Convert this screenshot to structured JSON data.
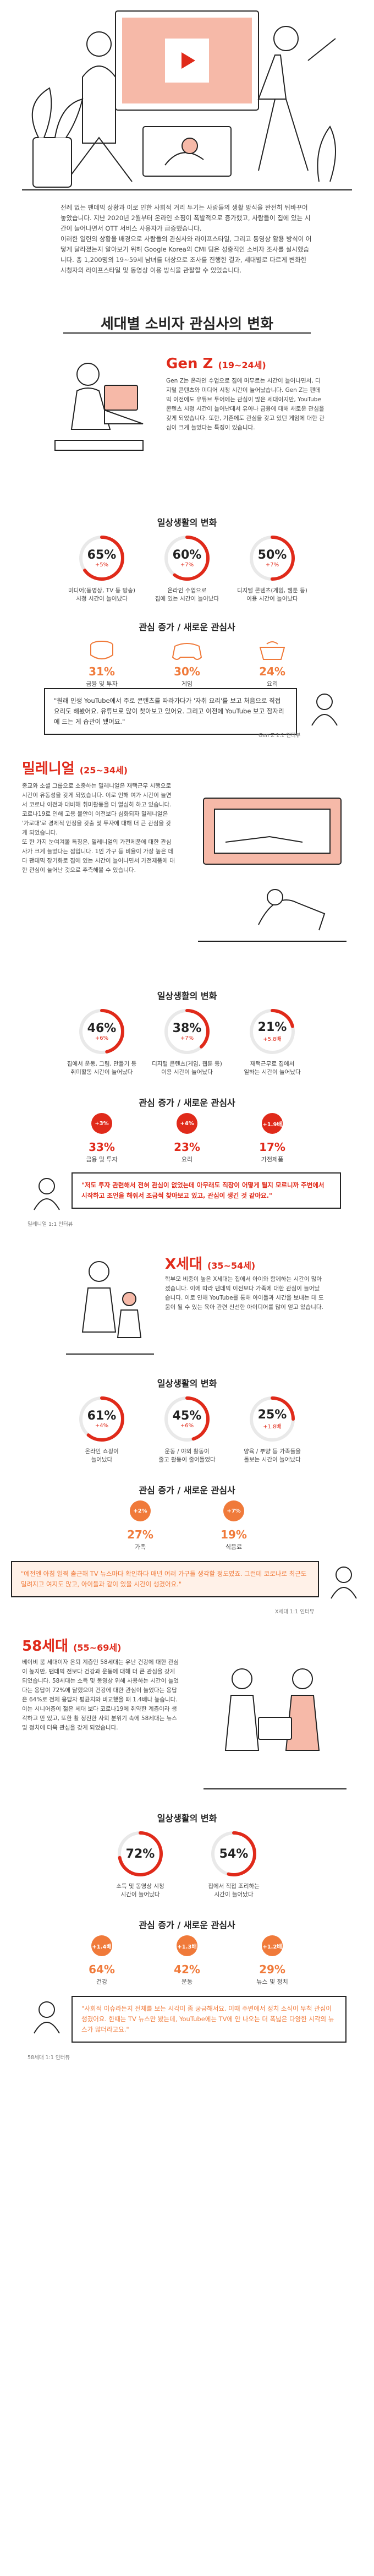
{
  "intro": "전례 없는 팬데믹 상황과 이로 인한 사회적 거리 두기는 사람들의 생활 방식을 완전히 뒤바꾸어 놓았습니다. 지난 2020년 2월부터 온라인 쇼핑이 폭발적으로 증가했고, 사람들이 집에 있는 시간이 늘어나면서 OTT 서비스 사용자가 급증했습니다.\n이러한 일련의 상황을 배경으로 사람들의 관심사와 라이프스타일, 그리고 동영상 활용 방식이 어떻게 달라졌는지 알아보기 위해 Google Korea의 CMI 팀은 성충적인 소비자 조사를 실시했습니다. 총 1,200명의 19~59세 남녀를 대상으로 조사를 진행한 결과, 세대별로 다르게 변화한 시청자의 라이프스타일 및 동영상 이용 방식을 관찰할 수 있었습니다.",
  "main_title": "세대별 소비자 관심사의 변화",
  "genz": {
    "title": "Gen Z",
    "age": "(19~24세)",
    "desc": "Gen Z는 온라인 수업으로 집에 머무르는 시간이 늘어나면서, 디지털 콘텐츠와 미디어 시청 시간이 늘어났습니다. Gen Z는 팬데믹 이전에도 유튜브 투어에는 관심이 많은 세대이지만, YouTube 콘텐츠 시청 시간이 늘어난데서 유아나 금융에 대해 새로운 관심을 갖게 되었습니다. 또한, 기존에도 관심을 갖고 있던 게임에 대한 관심이 크게 늘었다는 특징이 있습니다.",
    "change_title": "일상생활의 변화",
    "stats": [
      {
        "pct": "65%",
        "delta": "+5%",
        "cap": "미디어(동영상, TV 등 방송)\n시청 시간이 늘어났다",
        "val": 65
      },
      {
        "pct": "60%",
        "delta": "+7%",
        "cap": "온라인 수업으로\n집에 있는 시간이 늘어났다",
        "val": 60
      },
      {
        "pct": "50%",
        "delta": "+7%",
        "cap": "디지털 콘텐츠(게임, 웹툰 등)\n이용 시간이 늘어났다",
        "val": 50
      }
    ],
    "int_title": "관심 증가 / 새로운 관심사",
    "interests": [
      {
        "pct": "31%",
        "lbl": "금융 및 투자"
      },
      {
        "pct": "30%",
        "lbl": "게임"
      },
      {
        "pct": "24%",
        "lbl": "요리"
      }
    ],
    "quote": "\"원래 인생 YouTube에서 주로 콘텐츠를 따라가다가 '자취 요리'를 보고 처음으로 직접 요리도 해봤어요. 유튜브로 많이 찾아보고 있어요. 그리고 이전에 YouTube 보고 잠자리에 드는 게 습관이 됐어요.\"",
    "quote_hl": "원래 인생 YouTube에서 주로 콘텐츠를 따라가다가 '자취 요리'를 보고 처음으로 직접 요리도 해봤어요.",
    "src": "Gen Z 1:1 인터뷰"
  },
  "mil": {
    "title": "밀레니얼",
    "age": "(25~34세)",
    "desc": "종교와 소셜 그룹으로 소중하는 밀레니얼은 재택근무 시행으로 시간이 유동성을 갖게 되었습니다. 이로 인해 여가 시간이 늘면서 코로나 이전과 대비해 취미활동을 더 열심히 하고 있습니다. 코로나19로 인해 고용 불안이 이전보다 심화되자 밀레니얼은 '가로대'로 경제적 안정을 갖출 및 투자에 대해 더 큰 관심을 갖게 되었습니다.\n또 한 가지 눈여겨볼 특징은, 밀레니얼의 가전제품에 대한 관심사가 크게 늘었다는 점입니다. 1인 가구 등 비율이 가장 높은 데다 팬데믹 장기화로 집에 있는 시간이 늘어나면서 가전제품에 대한 관심이 늘어난 것으로 추측해볼 수 있습니다.",
    "change_title": "일상생활의 변화",
    "stats": [
      {
        "pct": "46%",
        "delta": "+6%",
        "cap": "집에서 운동, 그림, 만들기 등\n취미활동 시간이 늘어났다",
        "val": 46
      },
      {
        "pct": "38%",
        "delta": "+7%",
        "cap": "디지털 콘텐츠(게임, 웹툰 등)\n이용 시간이 늘어났다",
        "val": 38
      },
      {
        "pct": "21%",
        "delta": "+5.8배",
        "cap": "재택근무로 집에서\n일하는 시간이 늘어났다",
        "val": 21
      }
    ],
    "int_title": "관심 증가 / 새로운 관심사",
    "interests": [
      {
        "pct": "33%",
        "lbl": "금융 및 투자",
        "badge": "+3%"
      },
      {
        "pct": "23%",
        "lbl": "요리",
        "badge": "+4%"
      },
      {
        "pct": "17%",
        "lbl": "가전제품",
        "badge": "+1.9배"
      }
    ],
    "quote": "\"저도 투자 관련해서 전혀 관심이 없었는데 아무래도 직장이 어떻게 될지 모르니까 주변에서 시작하고 조언을 해줘서 조금씩 찾아보고 있고, 관심이 생긴 것 같아요.\"",
    "src": "밀레니얼 1:1 인터뷰"
  },
  "genx": {
    "title": "X세대",
    "age": "(35~54세)",
    "desc": "학부모 비중이 높은 X세대는 집에서 아이와 함께하는 시간이 많아졌습니다. 이에 따라 팬데믹 이전보다 가족에 대한 관심이 늘어났습니다. 이로 인해 YouTube를 통해 아이들과 시간을 보내는 데 도움이 될 수 있는 육아 관련 신선한 아이디어를 많이 얻고 있습니다.",
    "change_title": "일상생활의 변화",
    "stats": [
      {
        "pct": "61%",
        "delta": "+4%",
        "cap": "온라인 쇼핑이\n늘어났다",
        "val": 61
      },
      {
        "pct": "45%",
        "delta": "+6%",
        "cap": "운동 / 야외 활동이\n줄고 활동이 줄어들었다",
        "val": 45
      },
      {
        "pct": "25%",
        "delta": "+1.8배",
        "cap": "양육 / 부양 등 가족들을\n돌보는 시간이 늘어났다",
        "val": 25
      }
    ],
    "int_title": "관심 증가 / 새로운 관심사",
    "interests": [
      {
        "pct": "27%",
        "lbl": "가족",
        "badge": "+2%"
      },
      {
        "pct": "19%",
        "lbl": "식음료",
        "badge": "+7%"
      }
    ],
    "quote": "\"예전엔 아침 일찍 출근해 TV 뉴스마다 확인하다 매년 여러 가구들 생각할 정도였죠. 그런데 코로나로 최근도 밀려지고 여지도 많고, 아이들과 같이 있을 시간이 생겼어요.\"",
    "src": "X세대 1:1 인터뷰"
  },
  "gen58": {
    "title": "58세대",
    "age": "(55~69세)",
    "desc": "베이비 붐 세대이자 은퇴 계층인 58세대는 유난 건강에 대한 관심이 높지만, 팬데믹 전보다 건강과 운동에 대해 더 큰 관심을 갖게 되었습니다. 58세대는 소득 및 동영상 위해 사용하는 시간이 늘었다는 응답이 72%에 달했으며 건강에 대한 관심이 늘었다는 응답은 64%로 전체 응답자 평균치와 비교했을 때 1.4배나 높습니다.\n이는 시니어층이 젊은 세대 보다 코로나19에 취약한 계층이라 생각하고 만 있고, 또한 활 정진한 사회 분위기 속에 58세대는 뉴스 및 정치에 더욱 관심을 갖게 되었습니다.",
    "change_title": "일상생활의 변화",
    "stats": [
      {
        "pct": "72%",
        "delta": "",
        "cap": "소득 및 동영상 시청\n시간이 늘어났다",
        "val": 72
      },
      {
        "pct": "54%",
        "delta": "",
        "cap": "집에서 직접 조리하는\n시간이 늘어났다",
        "val": 54
      }
    ],
    "int_title": "관심 증가 / 새로운 관심사",
    "interests": [
      {
        "pct": "64%",
        "lbl": "건강",
        "badge": "+1.4배"
      },
      {
        "pct": "42%",
        "lbl": "운동",
        "badge": "+1.3배"
      },
      {
        "pct": "29%",
        "lbl": "뉴스 및 정치",
        "badge": "+1.2배"
      }
    ],
    "quote": "\"사회적 이슈라든지 전체를 보는 시각이 좀 궁금해서요. 이때 주변에서 정치 소식이 무척 관심이 생겼어요. 한때는 TV 뉴스만 봤는데, YouTube에는 TV에 안 나오는 더 폭넓은 다양한 시각의 뉴스가 많더라고요.\"",
    "src": "58세대 1:1 인터뷰"
  },
  "colors": {
    "red": "#e02a1a",
    "orange": "#f07a3a",
    "gray_ring": "#e9e9e9"
  }
}
